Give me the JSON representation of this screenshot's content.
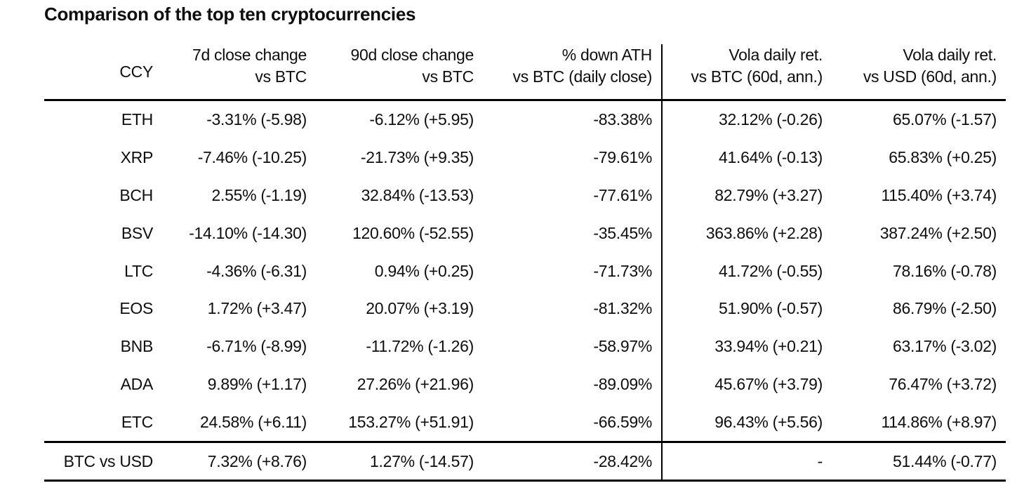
{
  "chart_data": {
    "type": "table",
    "title": "Comparison of the top ten cryptocurrencies",
    "columns": [
      {
        "id": "ccy",
        "line1": "CCY",
        "line2": ""
      },
      {
        "id": "chg_7d",
        "line1": "7d close change",
        "line2": "vs BTC"
      },
      {
        "id": "chg_90d",
        "line1": "90d close change",
        "line2": "vs BTC"
      },
      {
        "id": "down_ath",
        "line1": "% down ATH",
        "line2": "vs BTC (daily close)"
      },
      {
        "id": "vola_btc",
        "line1": "Vola daily ret.",
        "line2": "vs BTC (60d, ann.)"
      },
      {
        "id": "vola_usd",
        "line1": "Vola daily ret.",
        "line2": "vs USD (60d, ann.)"
      }
    ],
    "rows": [
      {
        "ccy": "ETH",
        "values": [
          "-3.31% (-5.98)",
          "-6.12% (+5.95)",
          "-83.38%",
          "32.12% (-0.26)",
          "65.07% (-1.57)"
        ]
      },
      {
        "ccy": "XRP",
        "values": [
          "-7.46% (-10.25)",
          "-21.73% (+9.35)",
          "-79.61%",
          "41.64% (-0.13)",
          "65.83% (+0.25)"
        ]
      },
      {
        "ccy": "BCH",
        "values": [
          "2.55% (-1.19)",
          "32.84% (-13.53)",
          "-77.61%",
          "82.79% (+3.27)",
          "115.40% (+3.74)"
        ]
      },
      {
        "ccy": "BSV",
        "values": [
          "-14.10% (-14.30)",
          "120.60% (-52.55)",
          "-35.45%",
          "363.86% (+2.28)",
          "387.24% (+2.50)"
        ]
      },
      {
        "ccy": "LTC",
        "values": [
          "-4.36% (-6.31)",
          "0.94% (+0.25)",
          "-71.73%",
          "41.72% (-0.55)",
          "78.16% (-0.78)"
        ]
      },
      {
        "ccy": "EOS",
        "values": [
          "1.72% (+3.47)",
          "20.07% (+3.19)",
          "-81.32%",
          "51.90% (-0.57)",
          "86.79% (-2.50)"
        ]
      },
      {
        "ccy": "BNB",
        "values": [
          "-6.71% (-8.99)",
          "-11.72% (-1.26)",
          "-58.97%",
          "33.94% (+0.21)",
          "63.17% (-3.02)"
        ]
      },
      {
        "ccy": "ADA",
        "values": [
          "9.89% (+1.17)",
          "27.26% (+21.96)",
          "-89.09%",
          "45.67% (+3.79)",
          "76.47% (+3.72)"
        ]
      },
      {
        "ccy": "ETC",
        "values": [
          "24.58% (+6.11)",
          "153.27% (+51.91)",
          "-66.59%",
          "96.43% (+5.56)",
          "114.86% (+8.97)"
        ]
      }
    ],
    "footer": {
      "ccy": "BTC vs USD",
      "values": [
        "7.32% (+8.76)",
        "1.27% (-14.57)",
        "-28.42%",
        "-",
        "51.44% (-0.77)"
      ]
    }
  }
}
